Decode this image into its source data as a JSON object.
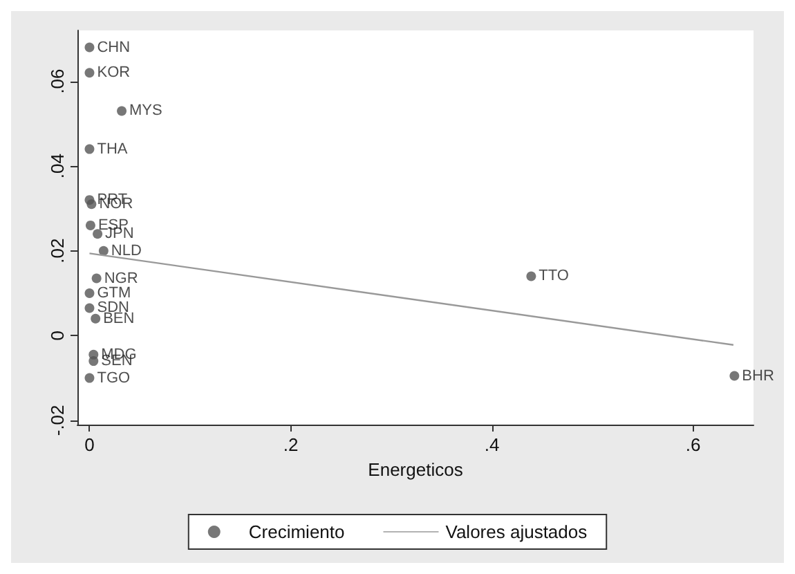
{
  "chart_data": {
    "type": "scatter",
    "xlabel": "Energeticos",
    "xlim": [
      -0.012,
      0.66
    ],
    "xticks": [
      {
        "value": 0,
        "label": "0"
      },
      {
        "value": 0.2,
        "label": ".2"
      },
      {
        "value": 0.4,
        "label": ".4"
      },
      {
        "value": 0.6,
        "label": ".6"
      }
    ],
    "ylim": [
      -0.021,
      0.072
    ],
    "yticks": [
      {
        "value": -0.02,
        "label": "-.02"
      },
      {
        "value": 0,
        "label": "0"
      },
      {
        "value": 0.02,
        "label": ".02"
      },
      {
        "value": 0.04,
        "label": ".04"
      },
      {
        "value": 0.06,
        "label": ".06"
      }
    ],
    "grid": false,
    "legend": "bottom",
    "marker": "circle",
    "series": [
      {
        "name": "Crecimiento",
        "color": "#555555",
        "x": [
          0,
          0,
          0.032,
          0,
          0,
          0.002,
          0.001,
          0.008,
          0.014,
          0.007,
          0,
          0,
          0.004,
          0.439,
          0.641,
          0.004,
          0.006,
          0
        ],
        "values": [
          0.068,
          0.062,
          0.053,
          0.044,
          0.032,
          0.031,
          0.026,
          0.024,
          0.02,
          0.0135,
          0.01,
          0.0065,
          -0.0045,
          0.014,
          -0.0095,
          -0.006,
          0.004,
          -0.01
        ],
        "value_labels": [
          "CHN",
          "KOR",
          "MYS",
          "THA",
          "PRT",
          "NOR",
          "ESP",
          "JPN",
          "NLD",
          "NGR",
          "GTM",
          "SDN",
          "MDG",
          "TTO",
          "BHR",
          "SEN",
          "BEN",
          "TGO"
        ]
      },
      {
        "name": "Valores ajustados",
        "type": "line",
        "color": "#999999",
        "marker": "none",
        "line_style": "solid",
        "x": [
          0,
          0.64
        ],
        "values": [
          0.0194,
          -0.0022
        ]
      }
    ]
  }
}
